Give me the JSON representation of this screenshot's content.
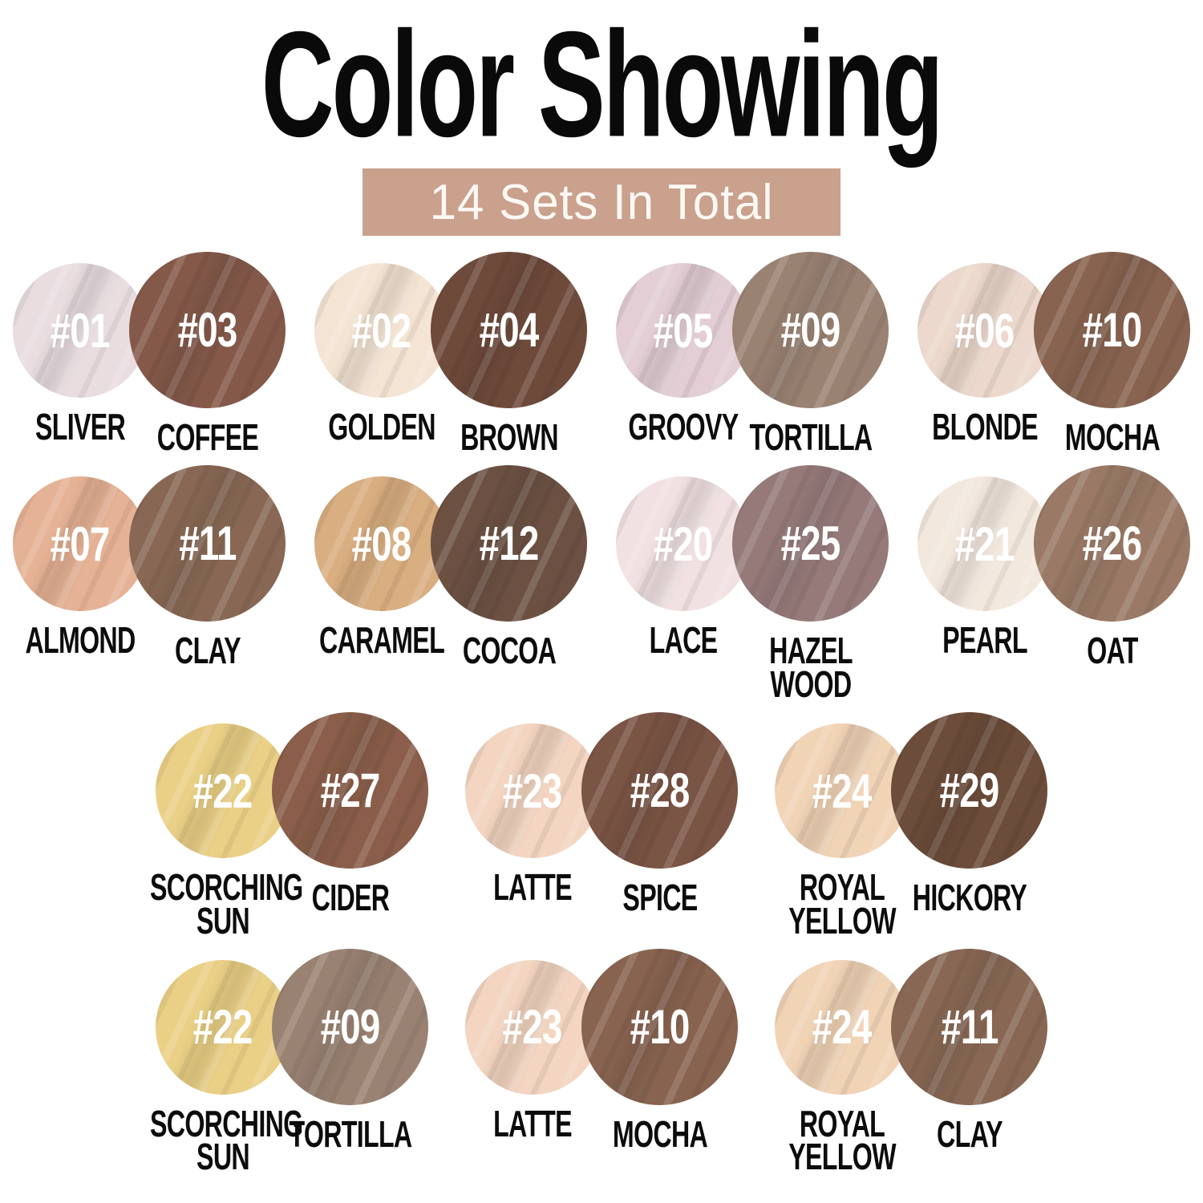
{
  "header": {
    "title": "Color Showing",
    "subtitle": "14 Sets In Total",
    "subtitle_bg": "#c9a18c",
    "subtitle_text_color": "#fdf8f4"
  },
  "rows": [
    [
      {
        "light": {
          "number": "#01",
          "name": "SLIVER",
          "color": "#e9dde0"
        },
        "dark": {
          "number": "#03",
          "name": "COFFEE",
          "color": "#84594a"
        }
      },
      {
        "light": {
          "number": "#02",
          "name": "GOLDEN",
          "color": "#f4e4d4"
        },
        "dark": {
          "number": "#04",
          "name": "BROWN",
          "color": "#6e4a3b"
        }
      },
      {
        "light": {
          "number": "#05",
          "name": "GROOVY",
          "color": "#e2ced4"
        },
        "dark": {
          "number": "#09",
          "name": "TORTILLA",
          "color": "#9a8272"
        }
      },
      {
        "light": {
          "number": "#06",
          "name": "BLONDE",
          "color": "#ecd8cc"
        },
        "dark": {
          "number": "#10",
          "name": "MOCHA",
          "color": "#886350"
        }
      }
    ],
    [
      {
        "light": {
          "number": "#07",
          "name": "ALMOND",
          "color": "#e6b295"
        },
        "dark": {
          "number": "#11",
          "name": "CLAY",
          "color": "#886854"
        }
      },
      {
        "light": {
          "number": "#08",
          "name": "CARAMEL",
          "color": "#d9ae80"
        },
        "dark": {
          "number": "#12",
          "name": "COCOA",
          "color": "#6c5143"
        }
      },
      {
        "light": {
          "number": "#20",
          "name": "LACE",
          "color": "#f1e1e2"
        },
        "dark": {
          "number": "#25",
          "name": "HAZEL\nWOOD",
          "color": "#967a7a"
        }
      },
      {
        "light": {
          "number": "#21",
          "name": "PEARL",
          "color": "#f3e8de"
        },
        "dark": {
          "number": "#26",
          "name": "OAT",
          "color": "#9a7a66"
        }
      }
    ],
    [
      {
        "light": {
          "number": "#22",
          "name": "SCORCHING\nSUN",
          "color": "#ead086"
        },
        "dark": {
          "number": "#27",
          "name": "CIDER",
          "color": "#8a5e4a"
        }
      },
      {
        "light": {
          "number": "#23",
          "name": "LATTE",
          "color": "#f3d5c1"
        },
        "dark": {
          "number": "#28",
          "name": "SPICE",
          "color": "#7a5444"
        }
      },
      {
        "light": {
          "number": "#24",
          "name": "ROYAL\nYELLOW",
          "color": "#f1d3b6"
        },
        "dark": {
          "number": "#29",
          "name": "HICKORY",
          "color": "#6c4c3a"
        }
      }
    ],
    [
      {
        "light": {
          "number": "#22",
          "name": "SCORCHING\nSUN",
          "color": "#ead086"
        },
        "dark": {
          "number": "#09",
          "name": "TORTILLA",
          "color": "#9a8272"
        }
      },
      {
        "light": {
          "number": "#23",
          "name": "LATTE",
          "color": "#f3d5c1"
        },
        "dark": {
          "number": "#10",
          "name": "MOCHA",
          "color": "#886350"
        }
      },
      {
        "light": {
          "number": "#24",
          "name": "ROYAL\nYELLOW",
          "color": "#f1d3b6"
        },
        "dark": {
          "number": "#11",
          "name": "CLAY",
          "color": "#886854"
        }
      }
    ]
  ]
}
